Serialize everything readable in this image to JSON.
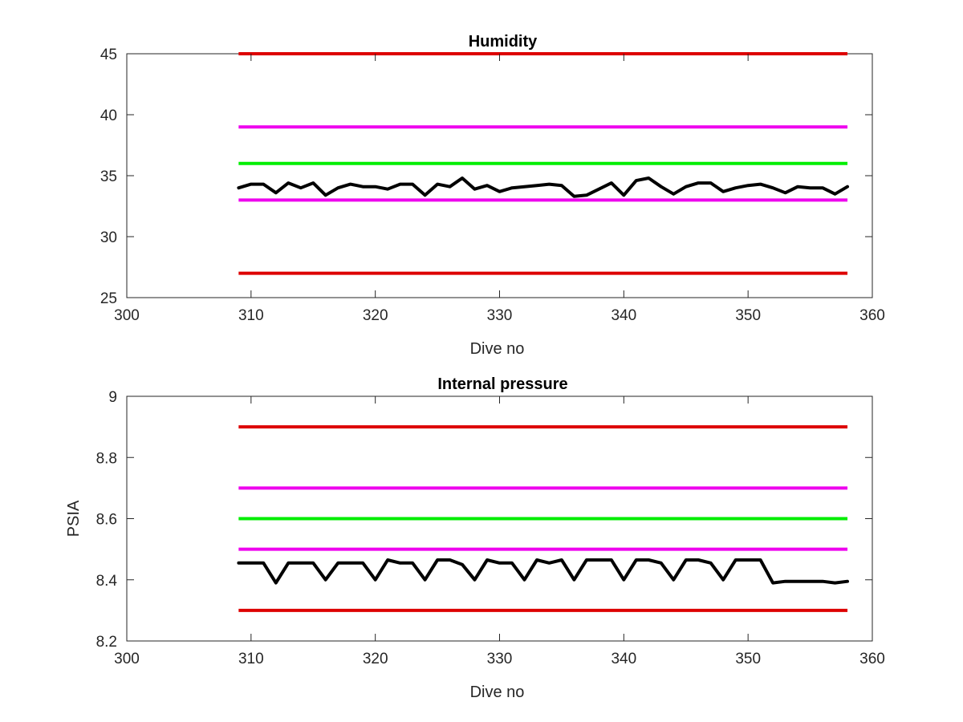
{
  "chart_data": [
    {
      "type": "line",
      "title": "Humidity",
      "xlabel": "Dive no",
      "ylabel": "",
      "xlim": [
        300,
        360
      ],
      "ylim": [
        25,
        45
      ],
      "xticks": [
        300,
        310,
        320,
        330,
        340,
        350,
        360
      ],
      "yticks": [
        25,
        30,
        35,
        40,
        45
      ],
      "grid": false,
      "legend": "none",
      "threshold_lines": [
        {
          "y": 45,
          "x": [
            309,
            358
          ],
          "color": "#dd0000"
        },
        {
          "y": 39,
          "x": [
            309,
            358
          ],
          "color": "#ee00ee"
        },
        {
          "y": 36,
          "x": [
            309,
            358
          ],
          "color": "#00ee00"
        },
        {
          "y": 33,
          "x": [
            309,
            358
          ],
          "color": "#ee00ee"
        },
        {
          "y": 27,
          "x": [
            309,
            358
          ],
          "color": "#dd0000"
        }
      ],
      "series": [
        {
          "color": "#000000",
          "x": [
            309,
            310,
            311,
            312,
            313,
            314,
            315,
            316,
            317,
            318,
            319,
            320,
            321,
            322,
            323,
            324,
            325,
            326,
            327,
            328,
            329,
            330,
            331,
            332,
            333,
            334,
            335,
            336,
            337,
            338,
            339,
            340,
            341,
            342,
            343,
            344,
            345,
            346,
            347,
            348,
            349,
            350,
            351,
            352,
            353,
            354,
            355,
            356,
            357,
            358
          ],
          "values": [
            34.0,
            34.3,
            34.3,
            33.6,
            34.4,
            34.0,
            34.4,
            33.4,
            34.0,
            34.3,
            34.1,
            34.1,
            33.9,
            34.3,
            34.3,
            33.4,
            34.3,
            34.1,
            34.8,
            33.9,
            34.2,
            33.7,
            34.0,
            34.1,
            34.2,
            34.3,
            34.2,
            33.3,
            33.4,
            33.9,
            34.4,
            33.4,
            34.6,
            34.8,
            34.1,
            33.5,
            34.1,
            34.4,
            34.4,
            33.7,
            34.0,
            34.2,
            34.3,
            34.0,
            33.6,
            34.1,
            34.0,
            34.0,
            33.5,
            34.1
          ]
        }
      ]
    },
    {
      "type": "line",
      "title": "Internal pressure",
      "xlabel": "Dive no",
      "ylabel": "PSIA",
      "xlim": [
        300,
        360
      ],
      "ylim": [
        8.2,
        9.0
      ],
      "xticks": [
        300,
        310,
        320,
        330,
        340,
        350,
        360
      ],
      "yticks": [
        8.2,
        8.4,
        8.6,
        8.8,
        9.0
      ],
      "ytick_labels": [
        "8.2",
        "8.4",
        "8.6",
        "8.8",
        "9"
      ],
      "grid": false,
      "legend": "none",
      "threshold_lines": [
        {
          "y": 8.9,
          "x": [
            309,
            358
          ],
          "color": "#dd0000"
        },
        {
          "y": 8.7,
          "x": [
            309,
            358
          ],
          "color": "#ee00ee"
        },
        {
          "y": 8.6,
          "x": [
            309,
            358
          ],
          "color": "#00ee00"
        },
        {
          "y": 8.5,
          "x": [
            309,
            358
          ],
          "color": "#ee00ee"
        },
        {
          "y": 8.3,
          "x": [
            309,
            358
          ],
          "color": "#dd0000"
        }
      ],
      "series": [
        {
          "color": "#000000",
          "x": [
            309,
            310,
            311,
            312,
            313,
            314,
            315,
            316,
            317,
            318,
            319,
            320,
            321,
            322,
            323,
            324,
            325,
            326,
            327,
            328,
            329,
            330,
            331,
            332,
            333,
            334,
            335,
            336,
            337,
            338,
            339,
            340,
            341,
            342,
            343,
            344,
            345,
            346,
            347,
            348,
            349,
            350,
            351,
            352,
            353,
            354,
            355,
            356,
            357,
            358
          ],
          "values": [
            8.455,
            8.455,
            8.455,
            8.39,
            8.455,
            8.455,
            8.455,
            8.4,
            8.455,
            8.455,
            8.455,
            8.4,
            8.465,
            8.455,
            8.455,
            8.4,
            8.465,
            8.465,
            8.45,
            8.4,
            8.465,
            8.455,
            8.455,
            8.4,
            8.465,
            8.455,
            8.465,
            8.4,
            8.465,
            8.465,
            8.465,
            8.4,
            8.465,
            8.465,
            8.455,
            8.4,
            8.465,
            8.465,
            8.455,
            8.4,
            8.465,
            8.465,
            8.465,
            8.39,
            8.395,
            8.395,
            8.395,
            8.395,
            8.39,
            8.395
          ]
        }
      ]
    }
  ]
}
